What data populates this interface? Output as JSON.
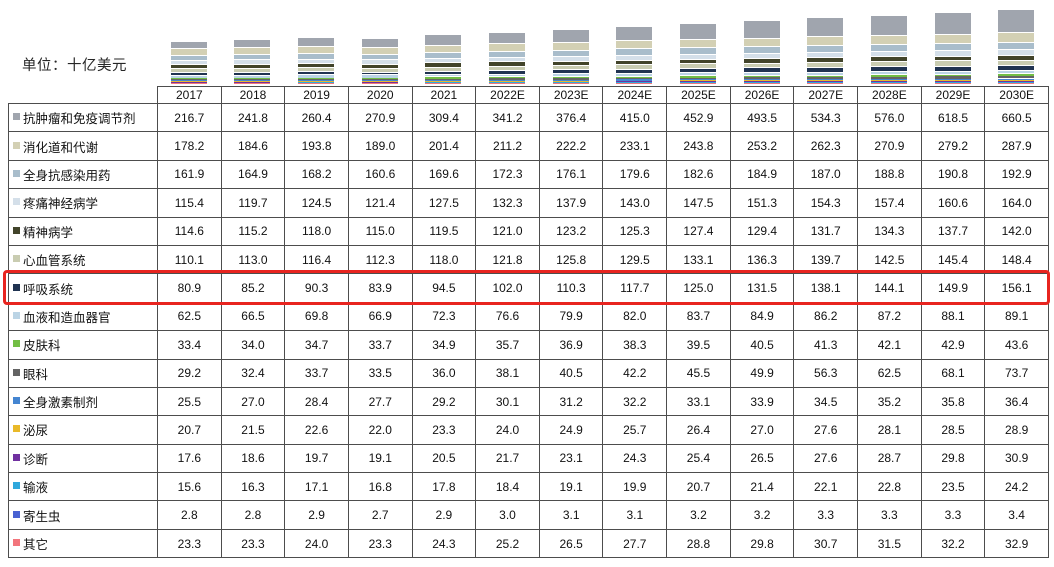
{
  "header": {
    "unit_label": "单位：十亿美元"
  },
  "highlight": {
    "series": "呼吸系统",
    "color": "#e8241f"
  },
  "chart_data": {
    "type": "bar",
    "stacked": true,
    "title": "",
    "unit": "十亿美元",
    "legend_position": "table-rows",
    "categories": [
      "2017",
      "2018",
      "2019",
      "2020",
      "2021",
      "2022E",
      "2023E",
      "2024E",
      "2025E",
      "2026E",
      "2027E",
      "2028E",
      "2029E",
      "2030E"
    ],
    "series": [
      {
        "name": "抗肿瘤和免疫调节剂",
        "color": "#a0a5ae",
        "values": [
          216.7,
          241.8,
          260.4,
          270.9,
          309.4,
          341.2,
          376.4,
          415.0,
          452.9,
          493.5,
          534.3,
          576.0,
          618.5,
          660.5
        ]
      },
      {
        "name": "消化道和代谢",
        "color": "#d3d0b4",
        "values": [
          178.2,
          184.6,
          193.8,
          189.0,
          201.4,
          211.2,
          222.2,
          233.1,
          243.8,
          253.2,
          262.3,
          270.9,
          279.2,
          287.9
        ]
      },
      {
        "name": "全身抗感染用药",
        "color": "#a9bdcb",
        "values": [
          161.9,
          164.9,
          168.2,
          160.6,
          169.6,
          172.3,
          176.1,
          179.6,
          182.6,
          184.9,
          187.0,
          188.8,
          190.8,
          192.9
        ]
      },
      {
        "name": "疼痛神经病学",
        "color": "#d4dfe9",
        "values": [
          115.4,
          119.7,
          124.5,
          121.4,
          127.5,
          132.3,
          137.9,
          143.0,
          147.5,
          151.3,
          154.3,
          157.4,
          160.6,
          164.0
        ]
      },
      {
        "name": "精神病学",
        "color": "#42442a",
        "values": [
          114.6,
          115.2,
          118.0,
          115.0,
          119.5,
          121.0,
          123.2,
          125.3,
          127.4,
          129.4,
          131.7,
          134.3,
          137.7,
          142.0
        ]
      },
      {
        "name": "心血管系统",
        "color": "#c9ccb1",
        "values": [
          110.1,
          113.0,
          116.4,
          112.3,
          118.0,
          121.8,
          125.8,
          129.5,
          133.1,
          136.3,
          139.7,
          142.5,
          145.4,
          148.4
        ]
      },
      {
        "name": "呼吸系统",
        "color": "#203351",
        "values": [
          80.9,
          85.2,
          90.3,
          83.9,
          94.5,
          102.0,
          110.3,
          117.7,
          125.0,
          131.5,
          138.1,
          144.1,
          149.9,
          156.1
        ]
      },
      {
        "name": "血液和造血器官",
        "color": "#bbd4e5",
        "values": [
          62.5,
          66.5,
          69.8,
          66.9,
          72.3,
          76.6,
          79.9,
          82.0,
          83.7,
          84.9,
          86.2,
          87.2,
          88.1,
          89.1
        ]
      },
      {
        "name": "皮肤科",
        "color": "#72be44",
        "values": [
          33.4,
          34.0,
          34.7,
          33.7,
          34.9,
          35.7,
          36.9,
          38.3,
          39.5,
          40.5,
          41.3,
          42.1,
          42.9,
          43.6
        ]
      },
      {
        "name": "眼科",
        "color": "#646464",
        "values": [
          29.2,
          32.4,
          33.7,
          33.5,
          36.0,
          38.1,
          40.5,
          42.2,
          45.5,
          49.9,
          56.3,
          62.5,
          68.1,
          73.7
        ]
      },
      {
        "name": "全身激素制剂",
        "color": "#4485d1",
        "values": [
          25.5,
          27.0,
          28.4,
          27.7,
          29.2,
          30.1,
          31.2,
          32.2,
          33.1,
          33.9,
          34.5,
          35.2,
          35.8,
          36.4
        ]
      },
      {
        "name": "泌尿",
        "color": "#e9b929",
        "values": [
          20.7,
          21.5,
          22.6,
          22.0,
          23.3,
          24.0,
          24.9,
          25.7,
          26.4,
          27.0,
          27.6,
          28.1,
          28.5,
          28.9
        ]
      },
      {
        "name": "诊断",
        "color": "#7030a0",
        "values": [
          17.6,
          18.6,
          19.7,
          19.1,
          20.5,
          21.7,
          23.1,
          24.3,
          25.4,
          26.5,
          27.6,
          28.7,
          29.8,
          30.9
        ]
      },
      {
        "name": "输液",
        "color": "#2fa8dc",
        "values": [
          15.6,
          16.3,
          17.1,
          16.8,
          17.8,
          18.4,
          19.1,
          19.9,
          20.7,
          21.4,
          22.1,
          22.8,
          23.5,
          24.2
        ]
      },
      {
        "name": "寄生虫",
        "color": "#4962d2",
        "values": [
          2.8,
          2.8,
          2.9,
          2.7,
          2.9,
          3.0,
          3.1,
          3.1,
          3.2,
          3.2,
          3.3,
          3.3,
          3.3,
          3.4
        ]
      },
      {
        "name": "其它",
        "color": "#f2757c",
        "values": [
          23.3,
          23.3,
          24.0,
          23.3,
          24.3,
          25.2,
          26.5,
          27.7,
          28.8,
          29.8,
          30.7,
          31.5,
          32.2,
          32.9
        ]
      }
    ]
  }
}
